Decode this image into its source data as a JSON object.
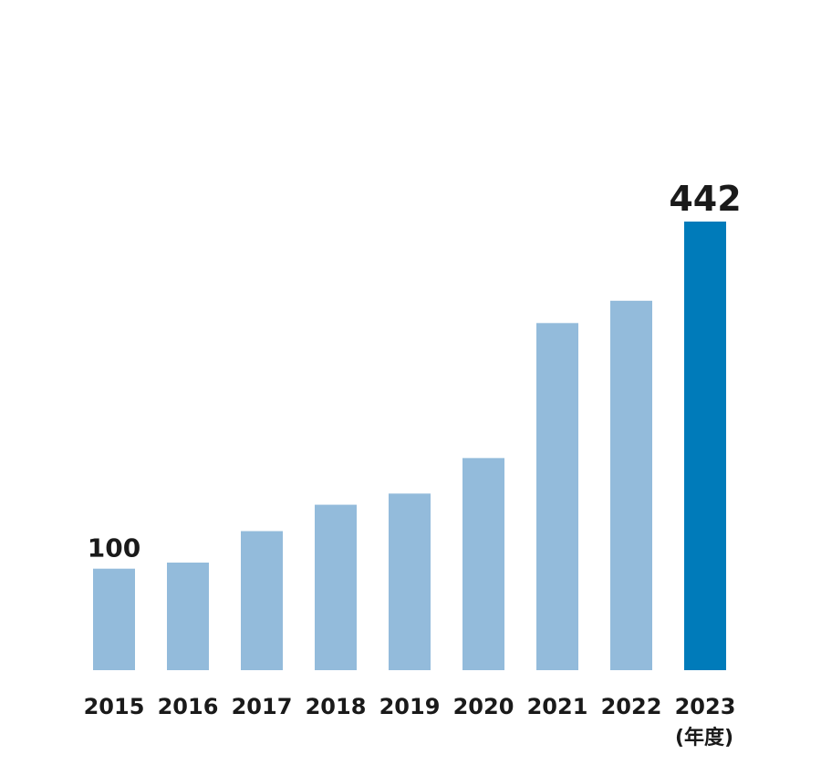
{
  "chart_data": {
    "type": "bar",
    "categories": [
      "2015",
      "2016",
      "2017",
      "2018",
      "2019",
      "2020",
      "2021",
      "2022",
      "2023"
    ],
    "values": [
      100,
      106,
      137,
      163,
      174,
      209,
      342,
      364,
      442
    ],
    "data_labels": {
      "2015": "100",
      "2023": "442"
    },
    "x_unit_label": "(年度)",
    "title": "",
    "xlabel": "",
    "ylabel": "",
    "ylim": [
      0,
      442
    ],
    "grid": false,
    "legend": "none",
    "colors": {
      "bar": "#93bbdb",
      "highlight_bar": "#007bba",
      "text": "#1a1a1a"
    },
    "highlight_category": "2023"
  }
}
